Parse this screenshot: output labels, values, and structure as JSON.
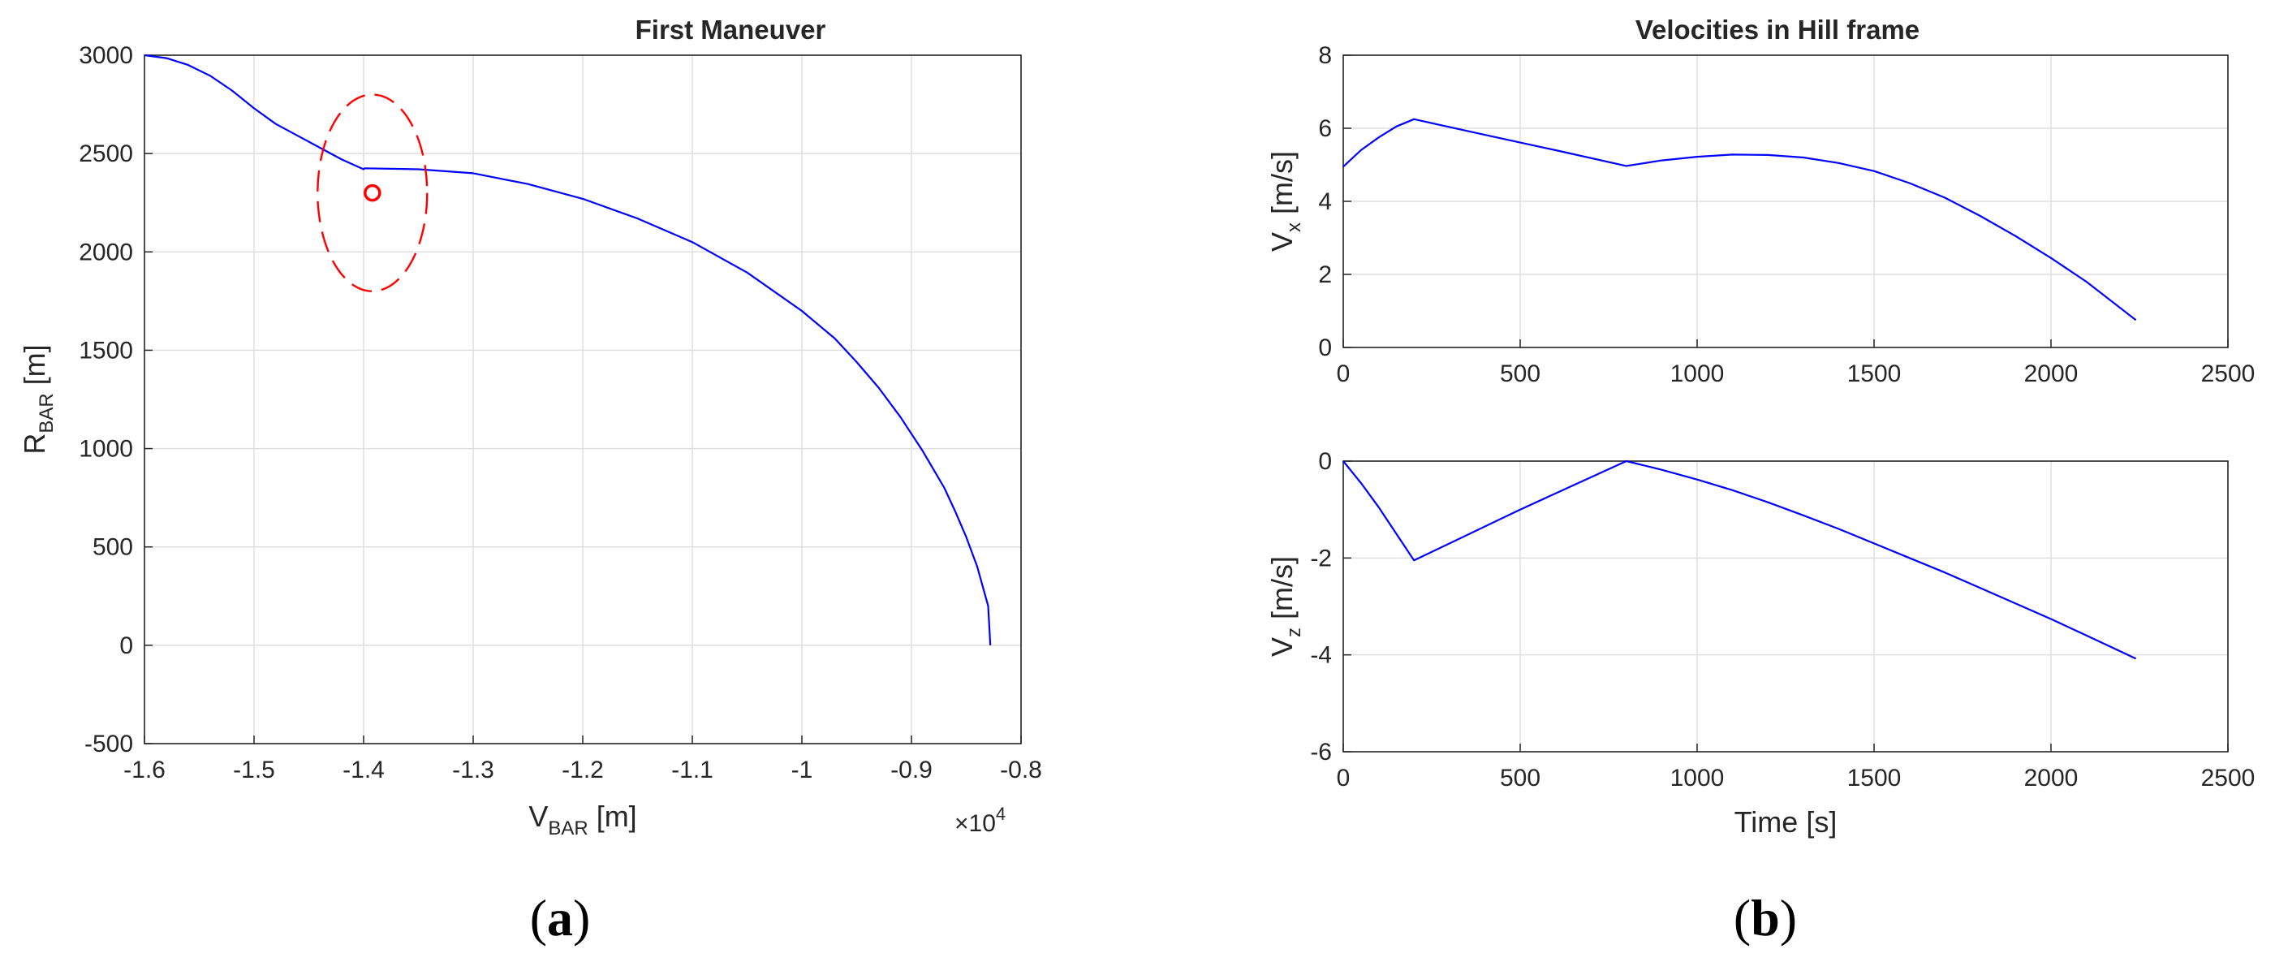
{
  "colors": {
    "line": "#0000ff",
    "marker": "#ff0000",
    "axis": "#262626",
    "grid": "#dfdfdf"
  },
  "captions": {
    "a": "a",
    "b": "b"
  },
  "chart_data": [
    {
      "type": "line",
      "title": "First Maneuver",
      "xlabel": {
        "main": "V",
        "sub": "BAR",
        "rest": " [m]"
      },
      "ylabel": {
        "main": "R",
        "sub": "BAR",
        "rest": " [m]"
      },
      "xlim": [
        -16000,
        -8000
      ],
      "ylim": [
        -500,
        3000
      ],
      "x_exponent": {
        "prefix": "×10",
        "power": "4"
      },
      "xticks": [
        -16000,
        -15000,
        -14000,
        -13000,
        -12000,
        -11000,
        -10000,
        -9000,
        -8000
      ],
      "xtick_labels": [
        "-1.6",
        "-1.5",
        "-1.4",
        "-1.3",
        "-1.2",
        "-1.1",
        "-1",
        "-0.9",
        "-0.8"
      ],
      "yticks": [
        -500,
        0,
        500,
        1000,
        1500,
        2000,
        2500,
        3000
      ],
      "ytick_labels": [
        "-500",
        "0",
        "500",
        "1000",
        "1500",
        "2000",
        "2500",
        "3000"
      ],
      "grid": true,
      "series": [
        {
          "x": [
            -16000,
            -15800,
            -15600,
            -15400,
            -15200,
            -15000,
            -14800,
            -14600,
            -14400,
            -14200,
            -14000,
            -13990,
            -13700,
            -13500,
            -13000,
            -12500,
            -12000,
            -11500,
            -11000,
            -10500,
            -10000,
            -9700,
            -9500,
            -9300,
            -9100,
            -8900,
            -8700,
            -8600,
            -8500,
            -8400,
            -8300,
            -8280
          ],
          "y": [
            3000,
            2985,
            2950,
            2895,
            2820,
            2730,
            2650,
            2590,
            2530,
            2470,
            2420,
            2425,
            2422,
            2420,
            2400,
            2345,
            2270,
            2170,
            2050,
            1895,
            1700,
            1560,
            1440,
            1310,
            1160,
            990,
            800,
            680,
            550,
            400,
            200,
            0
          ]
        }
      ],
      "ellipse": {
        "cx": -13920,
        "cy": 2300,
        "rx": 500,
        "ry": 500
      },
      "marker_point": {
        "x": -13920,
        "y": 2300
      }
    },
    {
      "type": "line",
      "title": "Velocities in Hill frame",
      "xlabel": "",
      "ylabel": {
        "main": "V",
        "sub": "x",
        "rest": " [m/s]"
      },
      "xlim": [
        0,
        2500
      ],
      "ylim": [
        0,
        8
      ],
      "xticks": [
        0,
        500,
        1000,
        1500,
        2000,
        2500
      ],
      "xtick_labels": [
        "0",
        "500",
        "1000",
        "1500",
        "2000",
        "2500"
      ],
      "yticks": [
        0,
        2,
        4,
        6,
        8
      ],
      "ytick_labels": [
        "0",
        "2",
        "4",
        "6",
        "8"
      ],
      "grid": true,
      "series": [
        {
          "x": [
            0,
            50,
            100,
            150,
            200,
            400,
            600,
            800,
            900,
            1000,
            1100,
            1200,
            1300,
            1400,
            1500,
            1600,
            1700,
            1800,
            1900,
            2000,
            2100,
            2200,
            2240
          ],
          "y": [
            4.95,
            5.4,
            5.75,
            6.05,
            6.25,
            5.82,
            5.4,
            4.97,
            5.12,
            5.22,
            5.28,
            5.27,
            5.2,
            5.05,
            4.83,
            4.5,
            4.1,
            3.6,
            3.05,
            2.45,
            1.8,
            1.05,
            0.75
          ]
        }
      ]
    },
    {
      "type": "line",
      "title": "",
      "xlabel": "Time [s]",
      "ylabel": {
        "main": "V",
        "sub": "z",
        "rest": " [m/s]"
      },
      "xlim": [
        0,
        2500
      ],
      "ylim": [
        -6,
        0
      ],
      "xticks": [
        0,
        500,
        1000,
        1500,
        2000,
        2500
      ],
      "xtick_labels": [
        "0",
        "500",
        "1000",
        "1500",
        "2000",
        "2500"
      ],
      "yticks": [
        -6,
        -4,
        -2,
        0
      ],
      "ytick_labels": [
        "-6",
        "-4",
        "-2",
        "0"
      ],
      "grid": true,
      "series": [
        {
          "x": [
            0,
            50,
            100,
            150,
            200,
            500,
            800,
            900,
            1000,
            1100,
            1200,
            1300,
            1400,
            1500,
            1600,
            1700,
            1800,
            1900,
            2000,
            2100,
            2200,
            2240
          ],
          "y": [
            0,
            -0.45,
            -0.95,
            -1.5,
            -2.05,
            -1.0,
            0,
            -0.18,
            -0.38,
            -0.6,
            -0.85,
            -1.12,
            -1.4,
            -1.7,
            -2.0,
            -2.3,
            -2.62,
            -2.94,
            -3.26,
            -3.6,
            -3.94,
            -4.08
          ]
        }
      ]
    }
  ]
}
